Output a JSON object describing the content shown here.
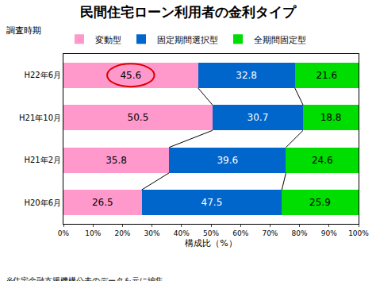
{
  "chart_data": {
    "type": "bar",
    "title": "民間住宅ローン利用者の金利タイプ",
    "y_label": "調査時期",
    "x_label": "構成比（%）",
    "annotations": [
      "※住宅金融支援機構公表のデータを元に編集。"
    ],
    "orientation": "horizontal",
    "stacked": true,
    "data_labels": true,
    "grid": false,
    "legend": "top",
    "categories": [
      "H22年6月",
      "H21年10月",
      "H21年2月",
      "H20年6月"
    ],
    "series": [
      {
        "name": "変動型",
        "color": "#ff99cc",
        "values": [
          45.6,
          50.5,
          35.8,
          26.5
        ]
      },
      {
        "name": "固定期間選択型",
        "color": "#0066cc",
        "values": [
          32.8,
          30.7,
          39.6,
          47.5
        ]
      },
      {
        "name": "全期間固定型",
        "color": "#00dd00",
        "values": [
          21.6,
          18.8,
          24.6,
          25.9
        ]
      }
    ],
    "xlim": [
      0,
      100
    ],
    "xticks": [
      {
        "value": 0,
        "label": "0%"
      },
      {
        "value": 10,
        "label": "10%"
      },
      {
        "value": 20,
        "label": "20%"
      },
      {
        "value": 30,
        "label": "30%"
      },
      {
        "value": 40,
        "label": "40%"
      },
      {
        "value": 50,
        "label": "50%"
      },
      {
        "value": 60,
        "label": "60%"
      },
      {
        "value": 70,
        "label": "70%"
      },
      {
        "value": 80,
        "label": "80%"
      },
      {
        "value": 90,
        "label": "90%"
      },
      {
        "value": 100,
        "label": "100%"
      }
    ]
  }
}
